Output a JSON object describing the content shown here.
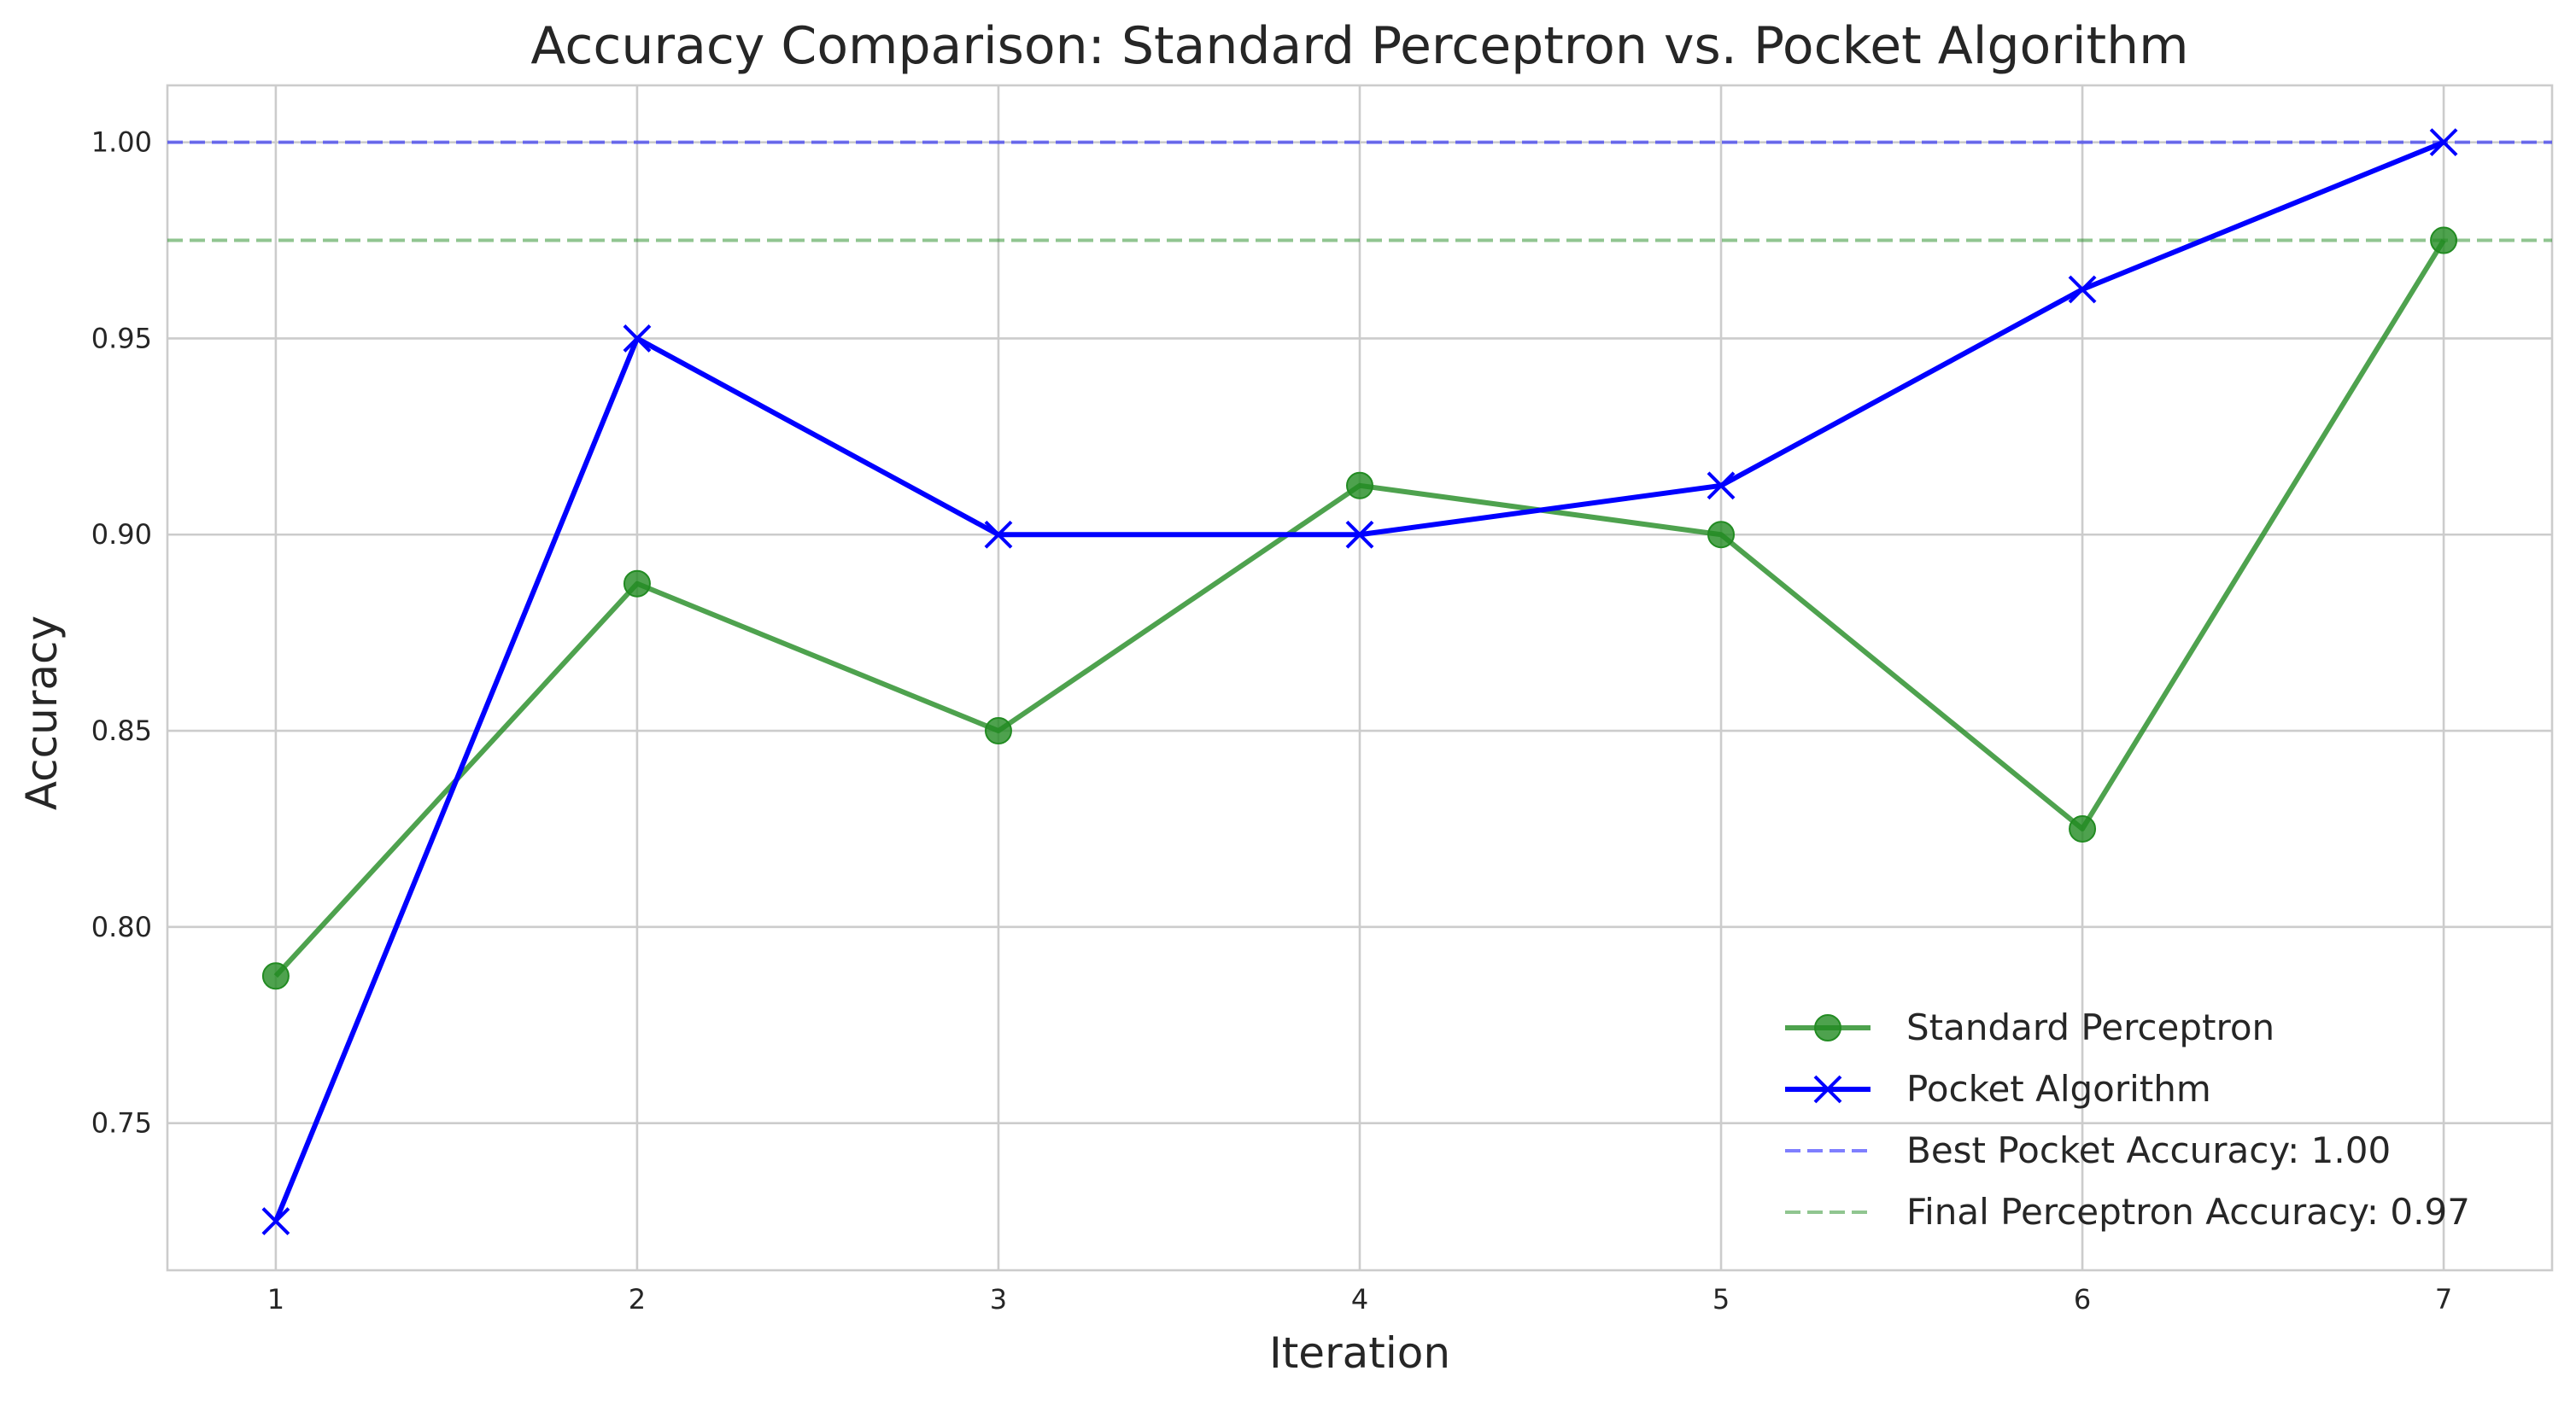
{
  "chart_data": {
    "type": "line",
    "title": "Accuracy Comparison: Standard Perceptron vs. Pocket Algorithm",
    "xlabel": "Iteration",
    "ylabel": "Accuracy",
    "x": [
      1,
      2,
      3,
      4,
      5,
      6,
      7
    ],
    "xlim": [
      0.7,
      7.3
    ],
    "ylim": [
      0.7125,
      1.0145
    ],
    "xticks": [
      1,
      2,
      3,
      4,
      5,
      6,
      7
    ],
    "xtick_labels": [
      "1",
      "2",
      "3",
      "4",
      "5",
      "6",
      "7"
    ],
    "yticks": [
      0.75,
      0.8,
      0.85,
      0.9,
      0.95,
      1.0
    ],
    "ytick_labels": [
      "0.75",
      "0.80",
      "0.85",
      "0.90",
      "0.95",
      "1.00"
    ],
    "grid": true,
    "legend_position": "lower-right",
    "series": [
      {
        "name": "Standard Perceptron",
        "values": [
          0.7875,
          0.8875,
          0.85,
          0.9125,
          0.9,
          0.825,
          0.975
        ],
        "color": "#228B22",
        "marker": "circle"
      },
      {
        "name": "Pocket Algorithm",
        "values": [
          0.725,
          0.95,
          0.9,
          0.9,
          0.9125,
          0.9625,
          1.0
        ],
        "color": "#0000FF",
        "marker": "x"
      }
    ],
    "reference_lines": [
      {
        "name": "Best Pocket Accuracy: 1.00",
        "value": 1.0,
        "color": "#0000FF",
        "style": "dashed"
      },
      {
        "name": "Final Perceptron Accuracy: 0.97",
        "value": 0.975,
        "color": "#228B22",
        "style": "dashed"
      }
    ]
  }
}
